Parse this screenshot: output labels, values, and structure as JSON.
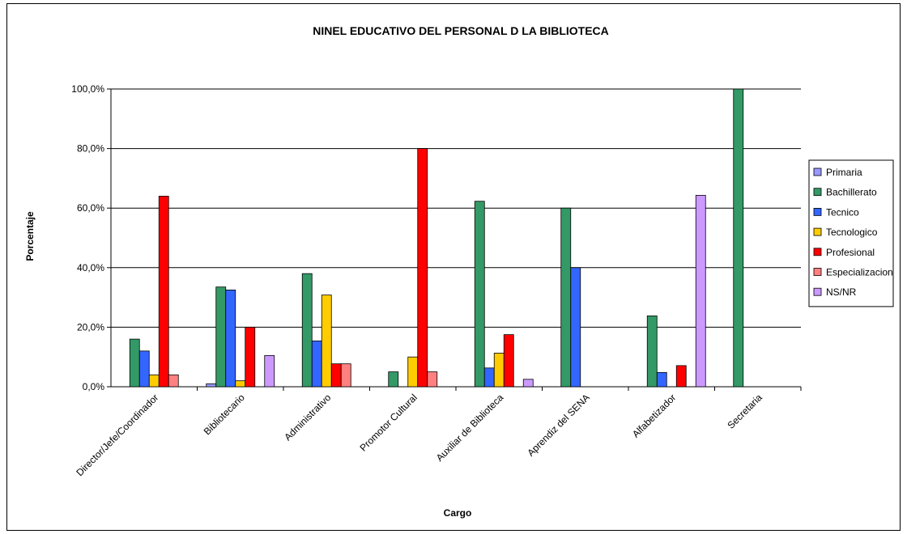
{
  "chart_data": {
    "type": "bar",
    "title": "NINEL EDUCATIVO DEL PERSONAL D LA BIBLIOTECA",
    "xlabel": "Cargo",
    "ylabel": "Porcentaje",
    "ylim": [
      0,
      100
    ],
    "yticks": [
      "0,0%",
      "20,0%",
      "40,0%",
      "60,0%",
      "80,0%",
      "100,0%"
    ],
    "grid": true,
    "legend_position": "right",
    "categories": [
      "Director/Jefe/Coordinador",
      "Bibliotecario",
      "Administrativo",
      "Promotor Cultural",
      "Auxiliar de Biblioteca",
      "Aprendiz del SENA",
      "Alfabetizador",
      "Secretaria"
    ],
    "series": [
      {
        "name": "Primaria",
        "color": "#9999ff",
        "values": [
          0,
          1,
          0,
          0,
          0,
          0,
          0,
          0
        ]
      },
      {
        "name": "Bachillerato",
        "color": "#339966",
        "values": [
          16,
          33.5,
          38,
          5,
          62.3,
          60,
          23.8,
          100
        ]
      },
      {
        "name": "Tecnico",
        "color": "#3366ff",
        "values": [
          12,
          32.5,
          15.4,
          0,
          6.3,
          40,
          4.8,
          0
        ]
      },
      {
        "name": "Tecnologico",
        "color": "#ffcc00",
        "values": [
          4,
          2,
          30.8,
          10,
          11.3,
          0,
          0,
          0
        ]
      },
      {
        "name": "Profesional",
        "color": "#ff0000",
        "values": [
          64,
          20,
          7.7,
          80,
          17.5,
          0,
          7.1,
          0
        ]
      },
      {
        "name": "Especializacion",
        "color": "#ff8080",
        "values": [
          4,
          0,
          7.7,
          5,
          0,
          0,
          0,
          0
        ]
      },
      {
        "name": "NS/NR",
        "color": "#cc99ff",
        "values": [
          0,
          10.5,
          0,
          0,
          2.5,
          0,
          64.3,
          0
        ]
      }
    ]
  }
}
